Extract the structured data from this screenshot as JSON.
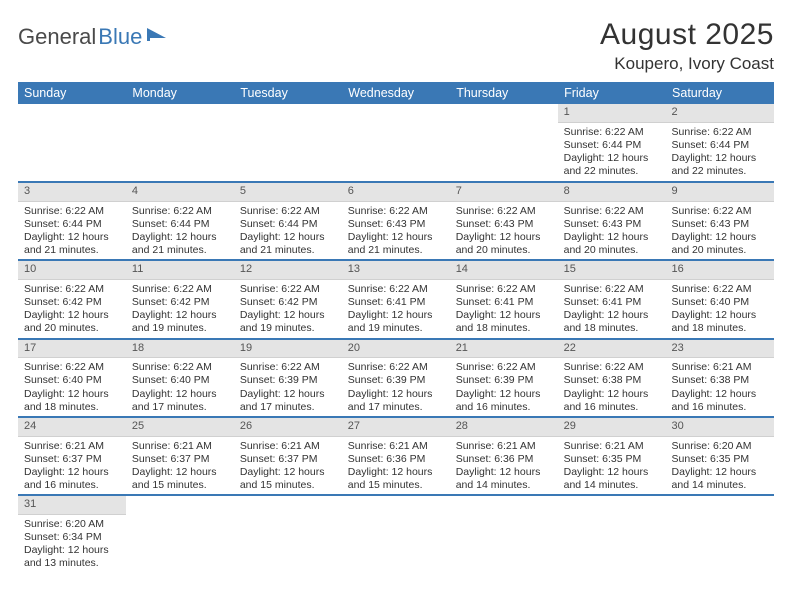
{
  "logo": {
    "text1": "General",
    "text2": "Blue"
  },
  "title": "August 2025",
  "location": "Koupero, Ivory Coast",
  "colors": {
    "header_bg": "#3a78b5",
    "header_text": "#ffffff",
    "daynum_bg": "#e4e4e4",
    "row_divider": "#3a78b5",
    "page_bg": "#ffffff"
  },
  "daynames": [
    "Sunday",
    "Monday",
    "Tuesday",
    "Wednesday",
    "Thursday",
    "Friday",
    "Saturday"
  ],
  "weeks": [
    [
      null,
      null,
      null,
      null,
      null,
      {
        "n": "1",
        "sr": "Sunrise: 6:22 AM",
        "ss": "Sunset: 6:44 PM",
        "d1": "Daylight: 12 hours",
        "d2": "and 22 minutes."
      },
      {
        "n": "2",
        "sr": "Sunrise: 6:22 AM",
        "ss": "Sunset: 6:44 PM",
        "d1": "Daylight: 12 hours",
        "d2": "and 22 minutes."
      }
    ],
    [
      {
        "n": "3",
        "sr": "Sunrise: 6:22 AM",
        "ss": "Sunset: 6:44 PM",
        "d1": "Daylight: 12 hours",
        "d2": "and 21 minutes."
      },
      {
        "n": "4",
        "sr": "Sunrise: 6:22 AM",
        "ss": "Sunset: 6:44 PM",
        "d1": "Daylight: 12 hours",
        "d2": "and 21 minutes."
      },
      {
        "n": "5",
        "sr": "Sunrise: 6:22 AM",
        "ss": "Sunset: 6:44 PM",
        "d1": "Daylight: 12 hours",
        "d2": "and 21 minutes."
      },
      {
        "n": "6",
        "sr": "Sunrise: 6:22 AM",
        "ss": "Sunset: 6:43 PM",
        "d1": "Daylight: 12 hours",
        "d2": "and 21 minutes."
      },
      {
        "n": "7",
        "sr": "Sunrise: 6:22 AM",
        "ss": "Sunset: 6:43 PM",
        "d1": "Daylight: 12 hours",
        "d2": "and 20 minutes."
      },
      {
        "n": "8",
        "sr": "Sunrise: 6:22 AM",
        "ss": "Sunset: 6:43 PM",
        "d1": "Daylight: 12 hours",
        "d2": "and 20 minutes."
      },
      {
        "n": "9",
        "sr": "Sunrise: 6:22 AM",
        "ss": "Sunset: 6:43 PM",
        "d1": "Daylight: 12 hours",
        "d2": "and 20 minutes."
      }
    ],
    [
      {
        "n": "10",
        "sr": "Sunrise: 6:22 AM",
        "ss": "Sunset: 6:42 PM",
        "d1": "Daylight: 12 hours",
        "d2": "and 20 minutes."
      },
      {
        "n": "11",
        "sr": "Sunrise: 6:22 AM",
        "ss": "Sunset: 6:42 PM",
        "d1": "Daylight: 12 hours",
        "d2": "and 19 minutes."
      },
      {
        "n": "12",
        "sr": "Sunrise: 6:22 AM",
        "ss": "Sunset: 6:42 PM",
        "d1": "Daylight: 12 hours",
        "d2": "and 19 minutes."
      },
      {
        "n": "13",
        "sr": "Sunrise: 6:22 AM",
        "ss": "Sunset: 6:41 PM",
        "d1": "Daylight: 12 hours",
        "d2": "and 19 minutes."
      },
      {
        "n": "14",
        "sr": "Sunrise: 6:22 AM",
        "ss": "Sunset: 6:41 PM",
        "d1": "Daylight: 12 hours",
        "d2": "and 18 minutes."
      },
      {
        "n": "15",
        "sr": "Sunrise: 6:22 AM",
        "ss": "Sunset: 6:41 PM",
        "d1": "Daylight: 12 hours",
        "d2": "and 18 minutes."
      },
      {
        "n": "16",
        "sr": "Sunrise: 6:22 AM",
        "ss": "Sunset: 6:40 PM",
        "d1": "Daylight: 12 hours",
        "d2": "and 18 minutes."
      }
    ],
    [
      {
        "n": "17",
        "sr": "Sunrise: 6:22 AM",
        "ss": "Sunset: 6:40 PM",
        "d1": "Daylight: 12 hours",
        "d2": "and 18 minutes."
      },
      {
        "n": "18",
        "sr": "Sunrise: 6:22 AM",
        "ss": "Sunset: 6:40 PM",
        "d1": "Daylight: 12 hours",
        "d2": "and 17 minutes."
      },
      {
        "n": "19",
        "sr": "Sunrise: 6:22 AM",
        "ss": "Sunset: 6:39 PM",
        "d1": "Daylight: 12 hours",
        "d2": "and 17 minutes."
      },
      {
        "n": "20",
        "sr": "Sunrise: 6:22 AM",
        "ss": "Sunset: 6:39 PM",
        "d1": "Daylight: 12 hours",
        "d2": "and 17 minutes."
      },
      {
        "n": "21",
        "sr": "Sunrise: 6:22 AM",
        "ss": "Sunset: 6:39 PM",
        "d1": "Daylight: 12 hours",
        "d2": "and 16 minutes."
      },
      {
        "n": "22",
        "sr": "Sunrise: 6:22 AM",
        "ss": "Sunset: 6:38 PM",
        "d1": "Daylight: 12 hours",
        "d2": "and 16 minutes."
      },
      {
        "n": "23",
        "sr": "Sunrise: 6:21 AM",
        "ss": "Sunset: 6:38 PM",
        "d1": "Daylight: 12 hours",
        "d2": "and 16 minutes."
      }
    ],
    [
      {
        "n": "24",
        "sr": "Sunrise: 6:21 AM",
        "ss": "Sunset: 6:37 PM",
        "d1": "Daylight: 12 hours",
        "d2": "and 16 minutes."
      },
      {
        "n": "25",
        "sr": "Sunrise: 6:21 AM",
        "ss": "Sunset: 6:37 PM",
        "d1": "Daylight: 12 hours",
        "d2": "and 15 minutes."
      },
      {
        "n": "26",
        "sr": "Sunrise: 6:21 AM",
        "ss": "Sunset: 6:37 PM",
        "d1": "Daylight: 12 hours",
        "d2": "and 15 minutes."
      },
      {
        "n": "27",
        "sr": "Sunrise: 6:21 AM",
        "ss": "Sunset: 6:36 PM",
        "d1": "Daylight: 12 hours",
        "d2": "and 15 minutes."
      },
      {
        "n": "28",
        "sr": "Sunrise: 6:21 AM",
        "ss": "Sunset: 6:36 PM",
        "d1": "Daylight: 12 hours",
        "d2": "and 14 minutes."
      },
      {
        "n": "29",
        "sr": "Sunrise: 6:21 AM",
        "ss": "Sunset: 6:35 PM",
        "d1": "Daylight: 12 hours",
        "d2": "and 14 minutes."
      },
      {
        "n": "30",
        "sr": "Sunrise: 6:20 AM",
        "ss": "Sunset: 6:35 PM",
        "d1": "Daylight: 12 hours",
        "d2": "and 14 minutes."
      }
    ],
    [
      {
        "n": "31",
        "sr": "Sunrise: 6:20 AM",
        "ss": "Sunset: 6:34 PM",
        "d1": "Daylight: 12 hours",
        "d2": "and 13 minutes."
      },
      null,
      null,
      null,
      null,
      null,
      null
    ]
  ]
}
